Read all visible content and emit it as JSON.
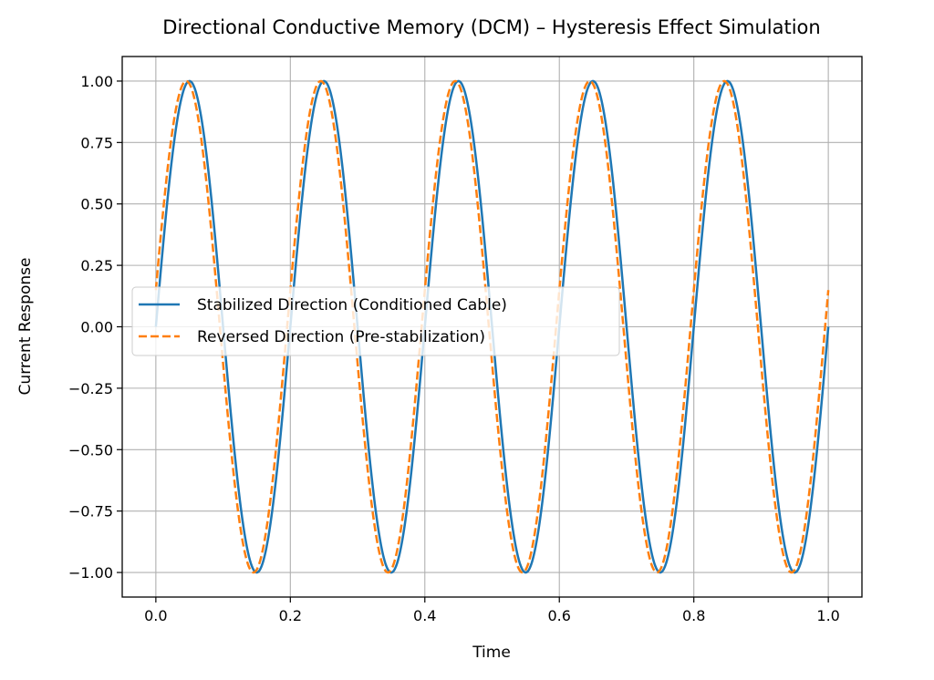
{
  "chart_data": {
    "type": "line",
    "title": "Directional Conductive Memory (DCM) – Hysteresis Effect Simulation",
    "xlabel": "Time",
    "ylabel": "Current Response",
    "xlim": [
      -0.05,
      1.05
    ],
    "ylim": [
      -1.1,
      1.1
    ],
    "xticks": [
      0.0,
      0.2,
      0.4,
      0.6,
      0.8,
      1.0
    ],
    "xtick_labels": [
      "0.0",
      "0.2",
      "0.4",
      "0.6",
      "0.8",
      "1.0"
    ],
    "yticks": [
      1.0,
      0.75,
      0.5,
      0.25,
      0.0,
      -0.25,
      -0.5,
      -0.75,
      -1.0
    ],
    "ytick_labels": [
      "1.00",
      "0.75",
      "0.50",
      "0.25",
      "0.00",
      "−0.25",
      "−0.50",
      "−0.75",
      "−1.00"
    ],
    "grid": true,
    "legend_position": "center-left",
    "x_range": [
      0,
      1
    ],
    "series": [
      {
        "name": "Stabilized Direction (Conditioned Cable)",
        "function": "sin(2*pi*5*t + phase)",
        "amplitude": 1,
        "frequency": 5,
        "phase": 0,
        "color": "#1f77b4",
        "style": "solid"
      },
      {
        "name": "Reversed Direction (Pre-stabilization)",
        "function": "sin(2*pi*5*t + phase)",
        "amplitude": 1,
        "frequency": 5,
        "phase": 0.15,
        "color": "#ff7f0e",
        "style": "dashed"
      }
    ]
  }
}
